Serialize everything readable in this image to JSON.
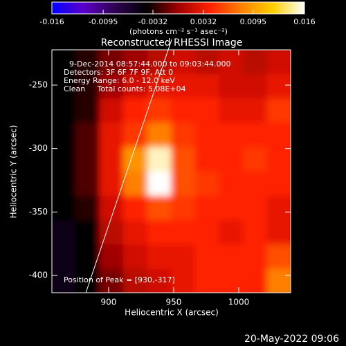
{
  "chart_data": {
    "type": "heatmap",
    "title": "Reconstructed RHESSI Image",
    "x_label": "Heliocentric X (arcsec)",
    "y_label": "Heliocentric Y (arcsec)",
    "colorbar_label": "(photons cm⁻² s⁻¹ asec⁻²)",
    "annotations": [
      "9-Dec-2014 08:57:44.000 to 09:03:44.000",
      "Detectors: 3F 6F 7F 9F, Att 0",
      "Energy Range: 6.0 - 12.0 keV",
      "Clean     Total counts: 5.08E+04"
    ],
    "peak_label": "Position of Peak = [930,-317]",
    "footer": "20-May-2022 09:06",
    "xlim": [
      856.4,
      1039.9
    ],
    "xticks": [
      900,
      950,
      1000
    ],
    "ylim": [
      -413.6,
      -222.2
    ],
    "yticks": [
      -250,
      -300,
      -350,
      -400
    ],
    "clim": [
      -0.016,
      0.016
    ],
    "cticks": [
      -0.016,
      -0.0095,
      -0.0032,
      0.0032,
      0.0095,
      0.016
    ],
    "colormap": [
      "#0000ff",
      "#5a00c8",
      "#300050",
      "#000000",
      "#a00000",
      "#ff2000",
      "#ff8000",
      "#ffd000",
      "#ffffff"
    ],
    "x": [
      865.2,
      883.6,
      902,
      920.4,
      938.8,
      957.2,
      975.6,
      994,
      1012.4,
      1030.8
    ],
    "y": [
      -231.6,
      -250.8,
      -270,
      -289.2,
      -308.4,
      -327.6,
      -346.8,
      -366,
      -385.2,
      -404.4
    ],
    "z": [
      [
        -0.004,
        -0.003,
        -0.001,
        0.0,
        0.001,
        0.002,
        0.001,
        0.002,
        0.001,
        0.002
      ],
      [
        -0.004,
        -0.003,
        0.0,
        0.002,
        0.003,
        0.003,
        0.003,
        0.002,
        0.002,
        0.003
      ],
      [
        -0.004,
        -0.003,
        0.002,
        0.004,
        0.005,
        0.004,
        0.004,
        0.003,
        0.003,
        0.005
      ],
      [
        -0.004,
        -0.002,
        0.003,
        0.005,
        0.008,
        0.005,
        0.004,
        0.004,
        0.004,
        0.004
      ],
      [
        -0.004,
        -0.002,
        0.003,
        0.009,
        0.015,
        0.006,
        0.004,
        0.004,
        0.005,
        0.004
      ],
      [
        -0.004,
        -0.002,
        0.003,
        0.008,
        0.016,
        0.006,
        0.005,
        0.004,
        0.004,
        0.004
      ],
      [
        -0.004,
        -0.003,
        0.002,
        0.004,
        0.006,
        0.005,
        0.004,
        0.004,
        0.004,
        0.003
      ],
      [
        -0.005,
        -0.004,
        0.001,
        0.003,
        0.004,
        0.004,
        0.004,
        0.003,
        0.004,
        0.003
      ],
      [
        -0.005,
        -0.004,
        0.0,
        0.002,
        0.003,
        0.003,
        0.004,
        0.004,
        0.004,
        0.006
      ],
      [
        -0.005,
        -0.004,
        -0.001,
        0.001,
        0.002,
        0.003,
        0.004,
        0.004,
        0.004,
        0.008
      ]
    ],
    "limb": {
      "x": [
        882.5,
        945.8
      ],
      "y": [
        -413.6,
        -222.2
      ],
      "color": "#ffffff"
    }
  }
}
